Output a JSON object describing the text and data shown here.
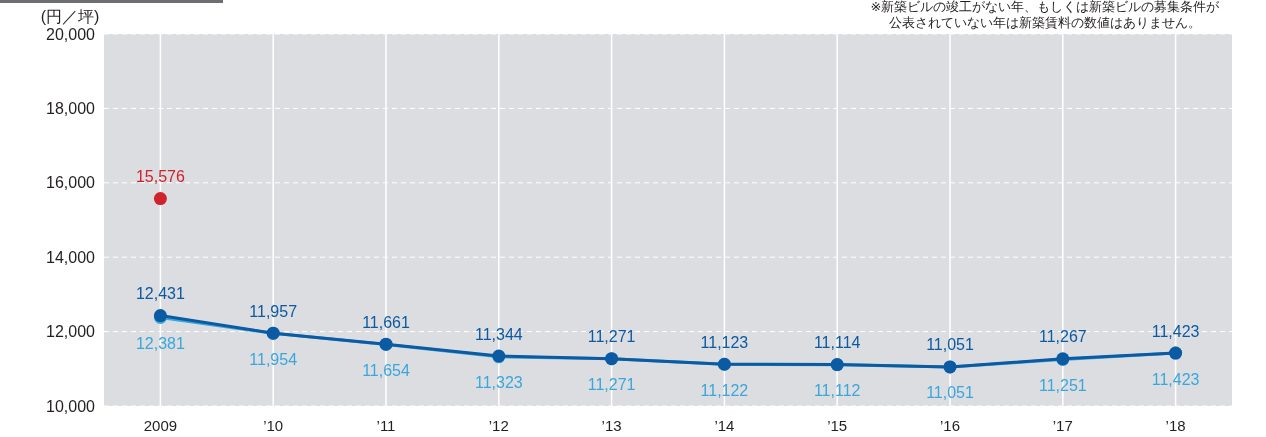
{
  "chart_data": {
    "type": "line",
    "ylabel": "(円／坪)",
    "annotations": [
      "※新築ビルの竣工がない年、もしくは新築ビルの募集条件が",
      "公表されていない年は新築賃料の数値はありません。"
    ],
    "categories": [
      "2009",
      "’10",
      "’11",
      "’12",
      "’13",
      "’14",
      "’15",
      "’16",
      "’17",
      "’18"
    ],
    "ylim": [
      10000,
      20000
    ],
    "yticks": [
      {
        "value": 10000,
        "label": "10,000"
      },
      {
        "value": 12000,
        "label": "12,000"
      },
      {
        "value": 14000,
        "label": "14,000"
      },
      {
        "value": 16000,
        "label": "16,000"
      },
      {
        "value": 18000,
        "label": "18,000"
      },
      {
        "value": 20000,
        "label": "20,000"
      }
    ],
    "grid": true,
    "marker": "circle",
    "line_style": "solid",
    "series": [
      {
        "color": "#3aa6dc",
        "values": [
          12381,
          11954,
          11654,
          11323,
          11271,
          11122,
          11112,
          11051,
          11251,
          11423
        ],
        "value_labels": [
          "12,381",
          "11,954",
          "11,654",
          "11,323",
          "11,271",
          "11,122",
          "11,112",
          "11,051",
          "11,251",
          "11,423"
        ]
      },
      {
        "color": "#0b5aa2",
        "values": [
          12431,
          11957,
          11661,
          11344,
          11271,
          11123,
          11114,
          11051,
          11267,
          11423
        ],
        "value_labels": [
          "12,431",
          "11,957",
          "11,661",
          "11,344",
          "11,271",
          "11,123",
          "11,114",
          "11,051",
          "11,267",
          "11,423"
        ]
      },
      {
        "type": "scatter",
        "color": "#d0222c",
        "values": [
          15576,
          null,
          null,
          null,
          null,
          null,
          null,
          null,
          null,
          null
        ],
        "value_labels": [
          "15,576",
          null,
          null,
          null,
          null,
          null,
          null,
          null,
          null,
          null
        ]
      }
    ]
  }
}
